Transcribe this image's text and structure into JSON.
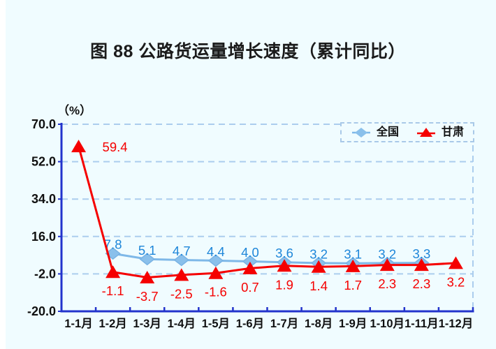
{
  "title": "图 88  公路货运量增长速度（累计同比）",
  "unit_label": "（%）",
  "legend": {
    "items": [
      {
        "label": "全国",
        "marker": "diamond",
        "color": "#8AC0EB",
        "line_color": "#7EB8E8"
      },
      {
        "label": "甘肃",
        "marker": "triangle",
        "color": "#F50000",
        "line_color": "#F50000"
      }
    ]
  },
  "style": {
    "background": "#F0FCFF",
    "axis_color": "#2233CC",
    "grid_color": "#ABCDEE",
    "tick_label_color": "#101010",
    "national_label_color": "#1E86D9",
    "gansu_label_color": "#F50000"
  },
  "chart_data": {
    "type": "line",
    "title": "图 88  公路货运量增长速度（累计同比）",
    "ylabel": "（%）",
    "ylim": [
      -20,
      70
    ],
    "yticks": [
      {
        "value": 70,
        "label": "70.0"
      },
      {
        "value": 52,
        "label": "52.0"
      },
      {
        "value": 34,
        "label": "34.0"
      },
      {
        "value": 16,
        "label": "16.0"
      },
      {
        "value": -2,
        "label": "-2.0"
      },
      {
        "value": -20,
        "label": "-20.0"
      }
    ],
    "categories": [
      "1-1月",
      "1-2月",
      "1-3月",
      "1-4月",
      "1-5月",
      "1-6月",
      "1-7月",
      "1-8月",
      "1-9月",
      "1-10月",
      "1-11月",
      "1-12月"
    ],
    "grid": "horizontal dashed",
    "legend_position": "top-right",
    "series": [
      {
        "id": "national",
        "name": "全国",
        "marker": "diamond",
        "color": "#7EB8E8",
        "marker_fill": "#8AC0EB",
        "marker_stroke": "#79B3E4",
        "label_color": "#1E86D9",
        "label_placement": "above",
        "values": [
          null,
          7.8,
          5.1,
          4.7,
          4.4,
          4.0,
          3.6,
          3.2,
          3.1,
          3.2,
          3.3,
          null
        ]
      },
      {
        "id": "gansu",
        "name": "甘肃",
        "marker": "triangle",
        "color": "#F50000",
        "marker_fill": "#F50000",
        "marker_stroke": "#F50000",
        "label_color": "#F50000",
        "label_placement": "below",
        "label_placements": [
          "right",
          "below",
          "below",
          "below",
          "below",
          "below",
          "below",
          "below",
          "below",
          "below",
          "below",
          "below"
        ],
        "values": [
          59.4,
          -1.1,
          -3.7,
          -2.5,
          -1.6,
          0.7,
          1.9,
          1.4,
          1.7,
          2.3,
          2.3,
          3.2
        ]
      }
    ]
  }
}
